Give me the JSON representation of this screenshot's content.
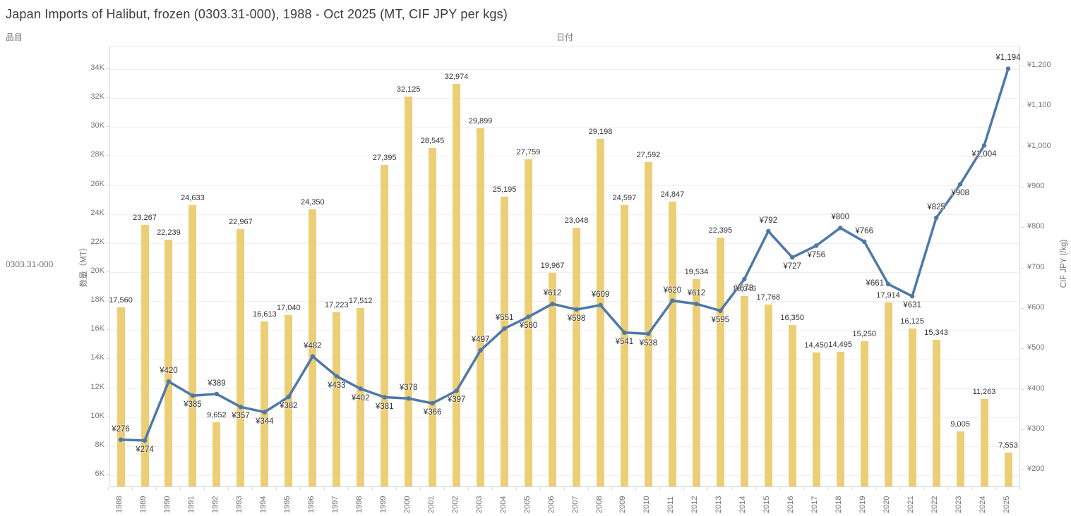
{
  "title": "Japan Imports of Halibut, frozen (0303.31-000), 1988 - Oct 2025 (MT, CIF JPY per kgs)",
  "header": {
    "left_label": "品目",
    "top_label": "日付"
  },
  "row_label": "0303.31-000",
  "left_axis": {
    "title": "数量（MT）",
    "tick_values": [
      6000,
      8000,
      10000,
      12000,
      14000,
      16000,
      18000,
      20000,
      22000,
      24000,
      26000,
      28000,
      30000,
      32000,
      34000
    ],
    "tick_labels": [
      "6K",
      "8K",
      "10K",
      "12K",
      "14K",
      "16K",
      "18K",
      "20K",
      "22K",
      "24K",
      "26K",
      "28K",
      "30K",
      "32K",
      "34K"
    ]
  },
  "right_axis": {
    "title": "CIF JPY (/kg)",
    "tick_values": [
      200,
      300,
      400,
      500,
      600,
      700,
      800,
      900,
      1000,
      1100,
      1200
    ],
    "tick_labels": [
      "¥200",
      "¥300",
      "¥400",
      "¥500",
      "¥600",
      "¥700",
      "¥800",
      "¥900",
      "¥1,000",
      "¥1,100",
      "¥1,200"
    ]
  },
  "colors": {
    "bar": "#ecce76",
    "line": "#4e79a7",
    "mark_label": "#333333",
    "axis_text": "#757575",
    "grid": "#f0f0f0",
    "border": "#d9d9d9",
    "title_text": "#3c3c3c"
  },
  "chart_data": {
    "type": "combo-bar-line",
    "categories": [
      "1988",
      "1989",
      "1990",
      "1991",
      "1992",
      "1993",
      "1994",
      "1995",
      "1996",
      "1997",
      "1998",
      "1999",
      "2000",
      "2001",
      "2002",
      "2003",
      "2004",
      "2005",
      "2006",
      "2007",
      "2008",
      "2009",
      "2010",
      "2011",
      "2012",
      "2013",
      "2014",
      "2015",
      "2016",
      "2017",
      "2018",
      "2019",
      "2020",
      "2021",
      "2022",
      "2023",
      "2024",
      "2025"
    ],
    "series": [
      {
        "name": "数量 (MT)",
        "type": "bar",
        "axis": "left",
        "values": [
          17560,
          23267,
          22239,
          24633,
          9652,
          22967,
          16613,
          17040,
          24350,
          17223,
          17512,
          27395,
          32125,
          28545,
          32974,
          29899,
          25195,
          27759,
          19967,
          23048,
          29198,
          24597,
          27592,
          24847,
          19534,
          22395,
          18346,
          17768,
          16350,
          14450,
          14495,
          15250,
          17914,
          16125,
          15343,
          9005,
          11263,
          7553
        ]
      },
      {
        "name": "CIF JPY (/kg)",
        "type": "line",
        "axis": "right",
        "values": [
          276,
          274,
          420,
          385,
          389,
          357,
          344,
          382,
          482,
          433,
          402,
          381,
          378,
          366,
          397,
          497,
          551,
          580,
          612,
          598,
          609,
          541,
          538,
          620,
          612,
          595,
          673,
          792,
          727,
          756,
          800,
          766,
          661,
          631,
          825,
          908,
          1004,
          1194
        ],
        "label_positions": [
          "above",
          "below",
          "above",
          "below",
          "above",
          "below",
          "below",
          "below",
          "above",
          "below",
          "below",
          "below",
          "above",
          "below",
          "below",
          "above",
          "above",
          "below",
          "above",
          "below",
          "above",
          "below",
          "below",
          "above",
          "above",
          "below",
          "below",
          "above",
          "below",
          "below",
          "above",
          "above",
          "left",
          "below",
          "above",
          "below",
          "below",
          "above"
        ]
      }
    ],
    "left_axis_range_ticks": [
      6000,
      34000
    ],
    "right_axis_range_ticks": [
      200,
      1200
    ],
    "grid": "horizontal-left-axis",
    "legend": "none"
  }
}
